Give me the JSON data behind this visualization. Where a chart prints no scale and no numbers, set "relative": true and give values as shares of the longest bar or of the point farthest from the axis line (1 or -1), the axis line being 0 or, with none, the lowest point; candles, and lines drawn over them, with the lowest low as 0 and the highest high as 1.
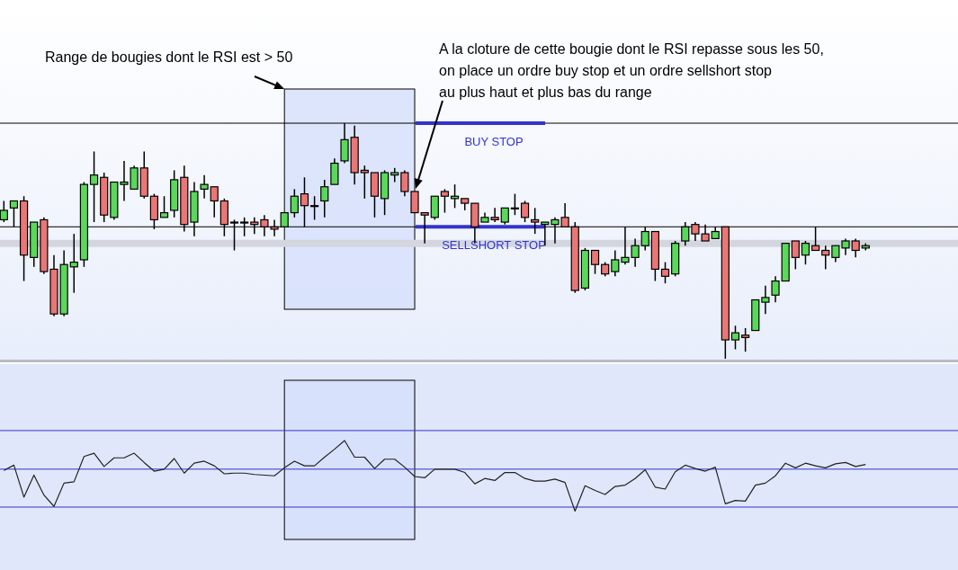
{
  "chart_data": [
    {
      "type": "candlestick",
      "relative": true,
      "categories": [
        null,
        null,
        null,
        null,
        null,
        null,
        null,
        null,
        null,
        null,
        null,
        null,
        null,
        null,
        null,
        null,
        null,
        null,
        null,
        null,
        null,
        null,
        null,
        null,
        null,
        null,
        null,
        null,
        null,
        null,
        null,
        null,
        null,
        null,
        null,
        null,
        null,
        null,
        null,
        null,
        null,
        null,
        null,
        null,
        null,
        null,
        null,
        null,
        null,
        null,
        null,
        null,
        null,
        null,
        null,
        null,
        null,
        null,
        null,
        null,
        null,
        null,
        null,
        null,
        null,
        null,
        null,
        null,
        null,
        null,
        null,
        null,
        null,
        null,
        null,
        null,
        null,
        null,
        null,
        null,
        null,
        null,
        null,
        null,
        null,
        null,
        null
      ],
      "ohlc": [
        [
          0.59,
          0.67,
          0.58,
          0.63
        ],
        [
          0.64,
          0.67,
          0.56,
          0.67
        ],
        [
          0.67,
          0.69,
          0.33,
          0.44
        ],
        [
          0.43,
          0.58,
          0.39,
          0.58
        ],
        [
          0.59,
          0.6,
          0.36,
          0.37
        ],
        [
          0.38,
          0.44,
          0.18,
          0.19
        ],
        [
          0.19,
          0.46,
          0.18,
          0.4
        ],
        [
          0.39,
          0.53,
          0.28,
          0.41
        ],
        [
          0.42,
          0.75,
          0.39,
          0.74
        ],
        [
          0.74,
          0.88,
          0.58,
          0.78
        ],
        [
          0.77,
          0.79,
          0.58,
          0.61
        ],
        [
          0.6,
          0.75,
          0.59,
          0.75
        ],
        [
          0.74,
          0.84,
          0.67,
          0.75
        ],
        [
          0.72,
          0.82,
          0.72,
          0.81
        ],
        [
          0.81,
          0.88,
          0.68,
          0.69
        ],
        [
          0.69,
          0.7,
          0.55,
          0.59
        ],
        [
          0.6,
          0.69,
          0.6,
          0.62
        ],
        [
          0.63,
          0.8,
          0.6,
          0.76
        ],
        [
          0.77,
          0.82,
          0.54,
          0.57
        ],
        [
          0.58,
          0.75,
          0.52,
          0.71
        ],
        [
          0.72,
          0.78,
          0.68,
          0.74
        ],
        [
          0.73,
          0.73,
          0.6,
          0.67
        ],
        [
          0.67,
          0.68,
          0.52,
          0.57
        ],
        [
          0.58,
          0.59,
          0.46,
          0.58
        ],
        [
          0.58,
          0.6,
          0.52,
          0.58
        ],
        [
          0.58,
          0.6,
          0.53,
          0.57
        ],
        [
          0.59,
          0.61,
          0.52,
          0.56
        ],
        [
          0.56,
          0.59,
          0.52,
          0.55
        ],
        [
          0.56,
          0.62,
          0.56,
          0.62
        ],
        [
          0.62,
          0.72,
          0.6,
          0.69
        ],
        [
          0.7,
          0.77,
          0.56,
          0.65
        ],
        [
          0.65,
          0.69,
          0.59,
          0.65
        ],
        [
          0.67,
          0.76,
          0.6,
          0.73
        ],
        [
          0.74,
          0.85,
          0.74,
          0.83
        ],
        [
          0.84,
          1.0,
          0.83,
          0.93
        ],
        [
          0.94,
          0.99,
          0.74,
          0.79
        ],
        [
          0.8,
          0.82,
          0.68,
          0.79
        ],
        [
          0.79,
          0.79,
          0.6,
          0.69
        ],
        [
          0.68,
          0.8,
          0.61,
          0.79
        ],
        [
          0.78,
          0.81,
          0.75,
          0.79
        ],
        [
          0.79,
          0.8,
          0.69,
          0.71
        ],
        [
          0.71,
          0.71,
          0.62,
          0.62
        ],
        [
          0.62,
          0.62,
          0.49,
          0.61
        ],
        [
          0.6,
          0.69,
          0.59,
          0.69
        ],
        [
          0.71,
          0.72,
          0.62,
          0.69
        ],
        [
          0.68,
          0.74,
          0.64,
          0.69
        ],
        [
          0.68,
          0.68,
          0.63,
          0.66
        ],
        [
          0.66,
          0.66,
          0.49,
          0.56
        ],
        [
          0.58,
          0.62,
          0.58,
          0.6
        ],
        [
          0.6,
          0.64,
          0.58,
          0.59
        ],
        [
          0.58,
          0.64,
          0.57,
          0.64
        ],
        [
          0.64,
          0.7,
          0.61,
          0.64
        ],
        [
          0.66,
          0.67,
          0.58,
          0.6
        ],
        [
          0.59,
          0.64,
          0.53,
          0.58
        ],
        [
          0.57,
          0.58,
          0.48,
          0.58
        ],
        [
          0.57,
          0.6,
          0.49,
          0.59
        ],
        [
          0.6,
          0.66,
          0.56,
          0.56
        ],
        [
          0.56,
          0.58,
          0.28,
          0.29
        ],
        [
          0.3,
          0.47,
          0.29,
          0.46
        ],
        [
          0.46,
          0.46,
          0.36,
          0.4
        ],
        [
          0.4,
          0.41,
          0.35,
          0.36
        ],
        [
          0.37,
          0.46,
          0.35,
          0.42
        ],
        [
          0.41,
          0.56,
          0.4,
          0.43
        ],
        [
          0.43,
          0.51,
          0.39,
          0.48
        ],
        [
          0.48,
          0.56,
          0.46,
          0.54
        ],
        [
          0.54,
          0.54,
          0.33,
          0.38
        ],
        [
          0.38,
          0.41,
          0.32,
          0.35
        ],
        [
          0.36,
          0.5,
          0.35,
          0.49
        ],
        [
          0.5,
          0.58,
          0.48,
          0.56
        ],
        [
          0.57,
          0.58,
          0.5,
          0.53
        ],
        [
          0.53,
          0.57,
          0.5,
          0.5
        ],
        [
          0.51,
          0.56,
          0.51,
          0.54
        ],
        [
          0.56,
          0.56,
          0.0,
          0.08
        ],
        [
          0.08,
          0.14,
          0.04,
          0.11
        ],
        [
          0.1,
          0.13,
          0.03,
          0.09
        ],
        [
          0.12,
          0.25,
          0.12,
          0.25
        ],
        [
          0.24,
          0.31,
          0.19,
          0.26
        ],
        [
          0.27,
          0.35,
          0.24,
          0.33
        ],
        [
          0.33,
          0.49,
          0.33,
          0.49
        ],
        [
          0.5,
          0.5,
          0.38,
          0.43
        ],
        [
          0.44,
          0.5,
          0.4,
          0.49
        ],
        [
          0.48,
          0.56,
          0.46,
          0.46
        ],
        [
          0.46,
          0.48,
          0.38,
          0.44
        ],
        [
          0.43,
          0.48,
          0.41,
          0.48
        ],
        [
          0.47,
          0.51,
          0.44,
          0.5
        ],
        [
          0.5,
          0.51,
          0.43,
          0.46
        ],
        [
          0.47,
          0.49,
          0.46,
          0.48
        ]
      ],
      "ref_lines": [
        {
          "axis": "y",
          "value": 1.0,
          "color": "#000000"
        },
        {
          "axis": "y",
          "value": 0.56,
          "color": "#000000"
        },
        {
          "axis": "y",
          "value": 0.49,
          "color": "#d3d6de"
        },
        {
          "axis": "y",
          "value": 1.0,
          "label": "BUY STOP",
          "color": "#3333cc"
        },
        {
          "axis": "y",
          "value": 0.56,
          "label": "SELLSHORT STOP",
          "color": "#3333cc"
        }
      ],
      "annotations": [
        "Range de bougies dont le RSI est > 50",
        "A la cloture de cette bougie dont le RSI repasse sous les 50,\non place un ordre buy stop et un ordre sellshort stop\nau plus haut et plus bas du range"
      ]
    },
    {
      "type": "line",
      "relative": true,
      "categories": [
        null,
        null,
        null,
        null,
        null,
        null,
        null,
        null,
        null,
        null,
        null,
        null,
        null,
        null,
        null,
        null,
        null,
        null,
        null,
        null,
        null,
        null,
        null,
        null,
        null,
        null,
        null,
        null,
        null,
        null,
        null,
        null,
        null,
        null,
        null,
        null,
        null,
        null,
        null,
        null,
        null,
        null,
        null,
        null,
        null,
        null,
        null,
        null,
        null,
        null,
        null,
        null,
        null,
        null,
        null,
        null,
        null,
        null,
        null,
        null,
        null,
        null,
        null,
        null,
        null,
        null,
        null,
        null,
        null,
        null,
        null,
        null,
        null,
        null,
        null,
        null,
        null,
        null,
        null,
        null,
        null,
        null,
        null,
        null,
        null,
        null,
        null
      ],
      "series": [
        {
          "color": "#222222",
          "values": [
            0.55,
            0.63,
            0.15,
            0.48,
            0.18,
            0.01,
            0.36,
            0.38,
            0.76,
            0.81,
            0.61,
            0.74,
            0.74,
            0.81,
            0.67,
            0.54,
            0.57,
            0.73,
            0.51,
            0.66,
            0.69,
            0.62,
            0.5,
            0.51,
            0.51,
            0.49,
            0.48,
            0.47,
            0.59,
            0.69,
            0.62,
            0.62,
            0.75,
            0.87,
            1.0,
            0.75,
            0.75,
            0.58,
            0.72,
            0.72,
            0.6,
            0.46,
            0.44,
            0.57,
            0.57,
            0.57,
            0.52,
            0.35,
            0.43,
            0.4,
            0.52,
            0.52,
            0.43,
            0.39,
            0.39,
            0.42,
            0.37,
            -0.06,
            0.32,
            0.25,
            0.19,
            0.31,
            0.33,
            0.43,
            0.56,
            0.3,
            0.27,
            0.53,
            0.63,
            0.58,
            0.54,
            0.6,
            0.05,
            0.1,
            0.09,
            0.33,
            0.36,
            0.47,
            0.66,
            0.59,
            0.66,
            0.62,
            0.59,
            0.65,
            0.67,
            0.61,
            0.64
          ]
        }
      ],
      "ref_lines": [
        {
          "axis": "y",
          "value": 1.15,
          "color": "#3333cc"
        },
        {
          "axis": "y",
          "value": 0.57,
          "color": "#3333cc"
        },
        {
          "axis": "y",
          "value": 0,
          "color": "#3333cc"
        }
      ]
    }
  ]
}
